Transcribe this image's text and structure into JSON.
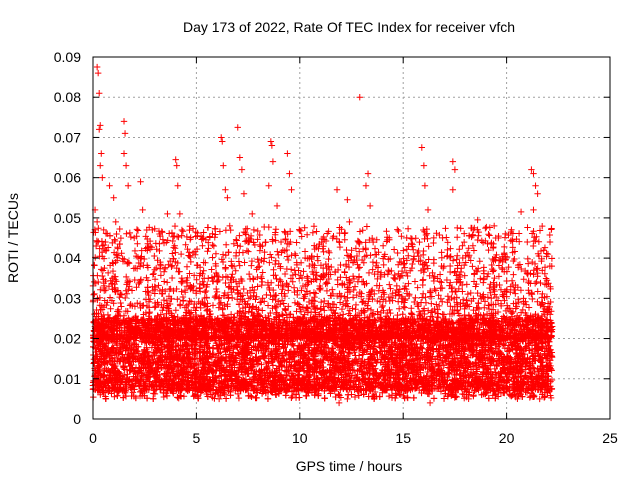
{
  "chart_data": {
    "type": "scatter",
    "title": "Day 173 of 2022, Rate Of TEC Index for receiver vfch",
    "xlabel": "GPS time / hours",
    "ylabel": "ROTI / TECUs",
    "xlim": [
      0,
      25
    ],
    "ylim": [
      0,
      0.09
    ],
    "xticks": [
      0,
      5,
      10,
      15,
      20,
      25
    ],
    "yticks": [
      0,
      0.01,
      0.02,
      0.03,
      0.04,
      0.05,
      0.06,
      0.07,
      0.08,
      0.09
    ],
    "xtick_labels": [
      "0",
      "5",
      "10",
      "15",
      "20",
      "25"
    ],
    "ytick_labels": [
      "0",
      "0.01",
      "0.02",
      "0.03",
      "0.04",
      "0.05",
      "0.06",
      "0.07",
      "0.08",
      "0.09"
    ],
    "grid": true,
    "marker": "plus",
    "series_color": "#ff0000",
    "x_data_range": [
      0.0,
      22.2
    ],
    "dense_band": [
      0.007,
      0.025
    ],
    "series": [
      {
        "points": [
          [
            0.2,
            0.0875
          ],
          [
            0.25,
            0.086
          ],
          [
            0.3,
            0.081
          ],
          [
            0.35,
            0.073
          ],
          [
            0.3,
            0.072
          ],
          [
            0.4,
            0.066
          ],
          [
            0.35,
            0.063
          ],
          [
            0.45,
            0.06
          ],
          [
            0.1,
            0.052
          ],
          [
            0.2,
            0.049
          ],
          [
            0.15,
            0.043
          ],
          [
            0.6,
            0.044
          ],
          [
            0.8,
            0.058
          ],
          [
            1.0,
            0.055
          ],
          [
            1.1,
            0.049
          ],
          [
            1.5,
            0.074
          ],
          [
            1.55,
            0.071
          ],
          [
            1.5,
            0.066
          ],
          [
            1.6,
            0.063
          ],
          [
            1.7,
            0.058
          ],
          [
            2.3,
            0.059
          ],
          [
            2.4,
            0.052
          ],
          [
            2.6,
            0.047
          ],
          [
            3.6,
            0.051
          ],
          [
            4.0,
            0.0645
          ],
          [
            4.05,
            0.063
          ],
          [
            4.1,
            0.058
          ],
          [
            4.2,
            0.051
          ],
          [
            4.3,
            0.047
          ],
          [
            5.3,
            0.045
          ],
          [
            6.2,
            0.07
          ],
          [
            6.25,
            0.069
          ],
          [
            6.3,
            0.063
          ],
          [
            6.4,
            0.057
          ],
          [
            6.5,
            0.055
          ],
          [
            7.0,
            0.0725
          ],
          [
            7.1,
            0.065
          ],
          [
            7.2,
            0.062
          ],
          [
            7.3,
            0.056
          ],
          [
            7.7,
            0.051
          ],
          [
            8.6,
            0.069
          ],
          [
            8.65,
            0.068
          ],
          [
            8.7,
            0.064
          ],
          [
            8.5,
            0.058
          ],
          [
            8.9,
            0.053
          ],
          [
            9.4,
            0.066
          ],
          [
            9.5,
            0.061
          ],
          [
            9.6,
            0.057
          ],
          [
            11.8,
            0.057
          ],
          [
            12.3,
            0.0545
          ],
          [
            12.4,
            0.049
          ],
          [
            12.9,
            0.08
          ],
          [
            13.3,
            0.061
          ],
          [
            13.2,
            0.058
          ],
          [
            13.4,
            0.053
          ],
          [
            15.9,
            0.0675
          ],
          [
            16.0,
            0.063
          ],
          [
            16.05,
            0.058
          ],
          [
            16.2,
            0.052
          ],
          [
            17.4,
            0.064
          ],
          [
            17.5,
            0.062
          ],
          [
            17.4,
            0.057
          ],
          [
            18.6,
            0.0495
          ],
          [
            19.4,
            0.048
          ],
          [
            19.6,
            0.045
          ],
          [
            20.7,
            0.0515
          ],
          [
            21.0,
            0.044
          ],
          [
            21.2,
            0.062
          ],
          [
            21.3,
            0.061
          ],
          [
            21.4,
            0.058
          ],
          [
            21.5,
            0.056
          ],
          [
            21.3,
            0.052
          ],
          [
            22.1,
            0.044
          ],
          [
            22.0,
            0.041
          ],
          [
            11.9,
            0.004
          ],
          [
            12.3,
            0.005
          ],
          [
            6.1,
            0.005
          ],
          [
            16.3,
            0.004
          ],
          [
            21.6,
            0.005
          ]
        ]
      }
    ]
  }
}
